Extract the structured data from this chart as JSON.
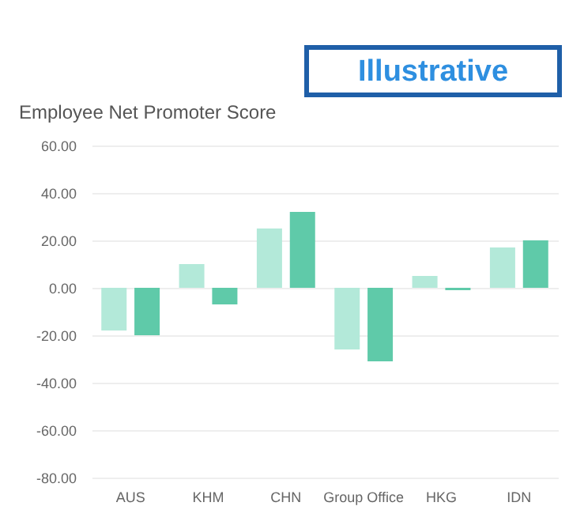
{
  "chart_data": {
    "type": "bar",
    "title": "Employee Net Promoter Score",
    "annotations": [
      "Illustrative"
    ],
    "categories": [
      "AUS",
      "KHM",
      "CHN",
      "Group Office",
      "HKG",
      "IDN"
    ],
    "series": [
      {
        "color": "#b3e9d9",
        "values": [
          -18,
          10,
          25,
          -26,
          5,
          17
        ]
      },
      {
        "color": "#5fcaa9",
        "values": [
          -20,
          -7,
          32,
          -31,
          -1,
          20
        ]
      }
    ],
    "ylim": [
      -80,
      60
    ],
    "yticks": [
      {
        "value": -80,
        "label": "-80.00"
      },
      {
        "value": -60,
        "label": "-60.00"
      },
      {
        "value": -40,
        "label": "-40.00"
      },
      {
        "value": -20,
        "label": "-20.00"
      },
      {
        "value": 0,
        "label": "0.00"
      },
      {
        "value": 20,
        "label": "20.00"
      },
      {
        "value": 40,
        "label": "40.00"
      },
      {
        "value": 60,
        "label": "60.00"
      }
    ],
    "grid": "y",
    "legend": false
  }
}
